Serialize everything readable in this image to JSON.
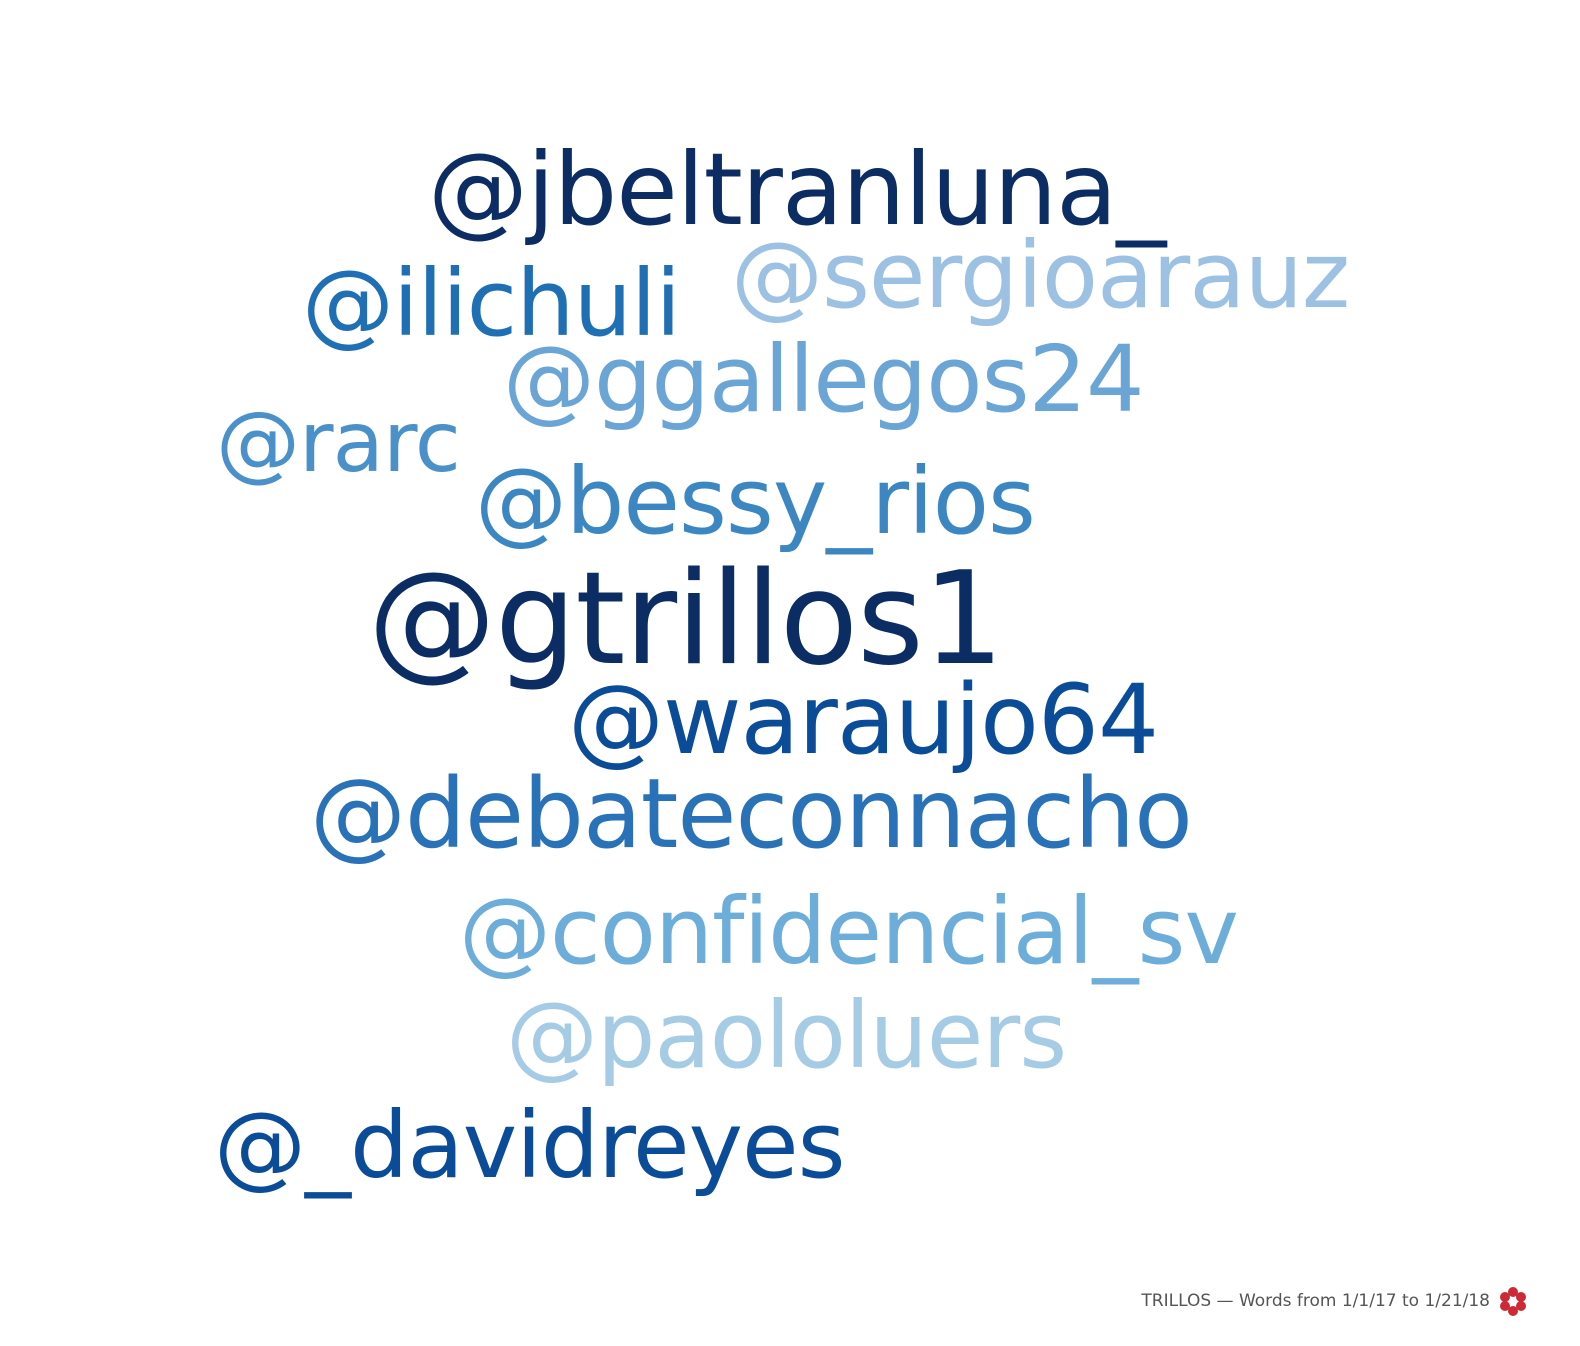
{
  "words": [
    {
      "text": "@jbeltranluna_",
      "color": "#0b2d63"
    },
    {
      "text": "@ilichuli",
      "color": "#1f6fb4"
    },
    {
      "text": "@sergioarauz",
      "color": "#9cc1e3"
    },
    {
      "text": "@ggallegos24",
      "color": "#6aa5d6"
    },
    {
      "text": "@rarc",
      "color": "#4a90c9"
    },
    {
      "text": "@bessy_rios",
      "color": "#3c87c2"
    },
    {
      "text": "@gtrillos1",
      "color": "#0b2d63"
    },
    {
      "text": "@waraujo64",
      "color": "#0a4c98"
    },
    {
      "text": "@debateconnacho",
      "color": "#2a72b8"
    },
    {
      "text": "@confidencial_sv",
      "color": "#6cadd9"
    },
    {
      "text": "@paololuers",
      "color": "#a5cbe5"
    },
    {
      "text": "@_davidreyes",
      "color": "#0a4c98"
    }
  ],
  "footer": {
    "caption": "TRILLOS — Words from 1/1/17 to 1/21/18",
    "logo_icon": "flower-logo-icon",
    "logo_color": "#cc2a36"
  }
}
